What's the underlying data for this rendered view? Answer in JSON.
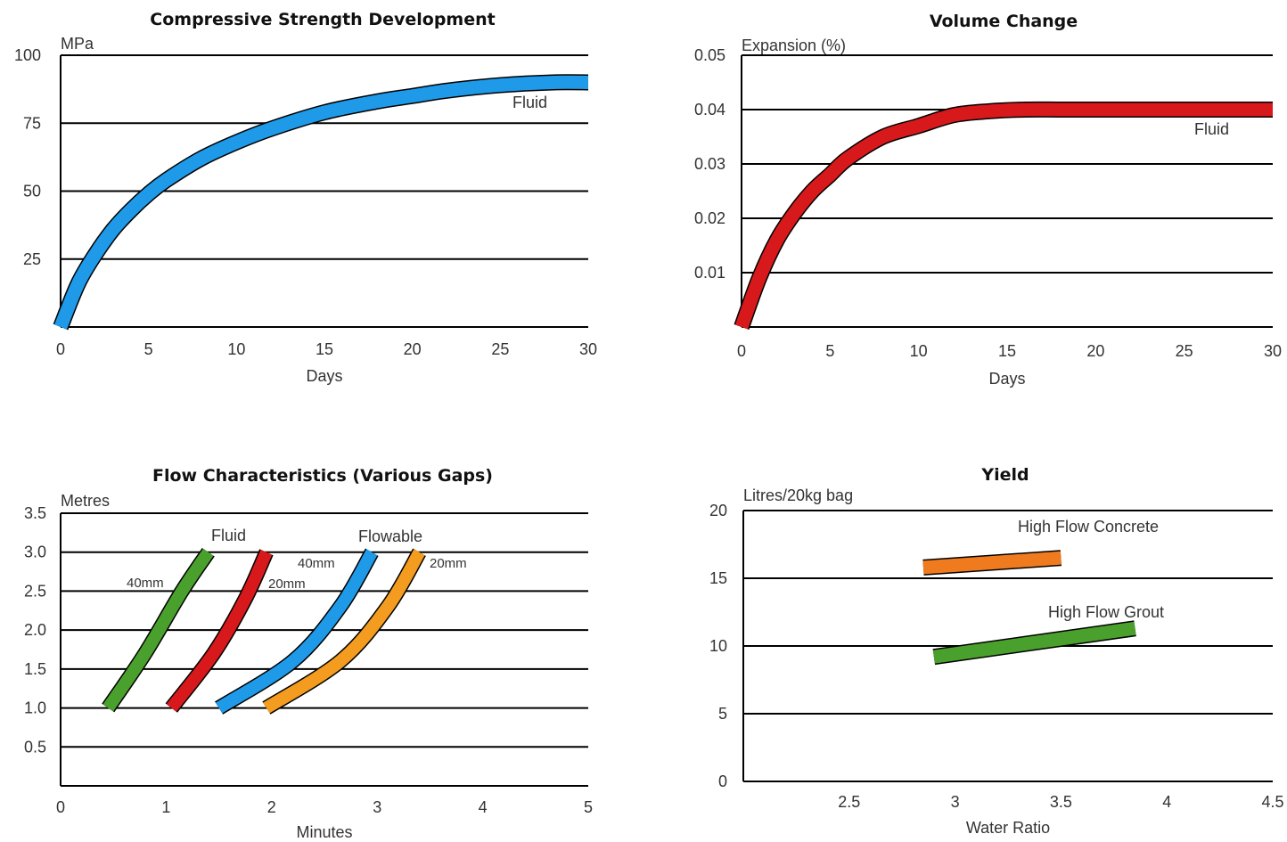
{
  "chart_data": [
    {
      "type": "line",
      "title": "Compressive Strength Development",
      "ylabel": "MPa",
      "xlabel": "Days",
      "xlim": [
        0,
        30
      ],
      "ylim": [
        0,
        100
      ],
      "xticks": [
        "0",
        "5",
        "10",
        "15",
        "20",
        "25",
        "30"
      ],
      "yticks": [
        "25",
        "50",
        "75",
        "100"
      ],
      "grid": true,
      "series": [
        {
          "name": "Fluid",
          "color": "#1f9ae8",
          "x": [
            0,
            1,
            2,
            3,
            4,
            5,
            6,
            8,
            10,
            12,
            15,
            18,
            20,
            22,
            25,
            28,
            30
          ],
          "y": [
            0,
            16,
            27,
            36,
            43,
            49,
            54,
            62,
            68,
            73,
            79,
            83,
            85,
            87,
            89,
            90,
            90
          ]
        }
      ]
    },
    {
      "type": "line",
      "title": "Volume Change",
      "ylabel": "Expansion (%)",
      "xlabel": "Days",
      "xlim": [
        0,
        30
      ],
      "ylim": [
        0,
        0.05
      ],
      "xticks": [
        "0",
        "5",
        "10",
        "15",
        "20",
        "25",
        "30"
      ],
      "yticks": [
        "0.01",
        "0.02",
        "0.03",
        "0.04",
        "0.05"
      ],
      "grid": true,
      "series": [
        {
          "name": "Fluid",
          "color": "#d7191c",
          "x": [
            0,
            1,
            2,
            3,
            4,
            5,
            6,
            8,
            10,
            12,
            14,
            16,
            18,
            20,
            25,
            30
          ],
          "y": [
            0,
            0.009,
            0.016,
            0.021,
            0.025,
            0.028,
            0.031,
            0.035,
            0.037,
            0.039,
            0.0397,
            0.04,
            0.04,
            0.04,
            0.04,
            0.04
          ]
        }
      ]
    },
    {
      "type": "line",
      "title": "Flow Characteristics (Various Gaps)",
      "ylabel": "Metres",
      "xlabel": "Minutes",
      "xlim": [
        0,
        5
      ],
      "ylim": [
        0,
        3.5
      ],
      "xticks": [
        "0",
        "1",
        "2",
        "3",
        "4",
        "5"
      ],
      "yticks": [
        "0.5",
        "1.0",
        "1.5",
        "2.0",
        "2.5",
        "3.0",
        "3.5"
      ],
      "grid": true,
      "group_labels": [
        "Fluid",
        "Flowable"
      ],
      "series": [
        {
          "name": "40mm",
          "group": "Fluid",
          "color": "#4aa02c",
          "x": [
            0.45,
            0.8,
            1.15,
            1.4
          ],
          "y": [
            1.0,
            1.7,
            2.5,
            3.0
          ]
        },
        {
          "name": "20mm",
          "group": "Fluid",
          "color": "#d7191c",
          "x": [
            1.05,
            1.45,
            1.75,
            1.95
          ],
          "y": [
            1.0,
            1.7,
            2.4,
            3.0
          ]
        },
        {
          "name": "40mm",
          "group": "Flowable",
          "color": "#1f9ae8",
          "x": [
            1.5,
            2.2,
            2.65,
            2.95
          ],
          "y": [
            1.0,
            1.6,
            2.3,
            3.0
          ]
        },
        {
          "name": "20mm",
          "group": "Flowable",
          "color": "#f39c1f",
          "x": [
            1.95,
            2.65,
            3.1,
            3.4
          ],
          "y": [
            1.0,
            1.6,
            2.3,
            3.0
          ]
        }
      ]
    },
    {
      "type": "line",
      "title": "Yield",
      "ylabel": "Litres/20kg bag",
      "xlabel": "Water Ratio",
      "xlim": [
        2.0,
        4.5
      ],
      "ylim": [
        0,
        20
      ],
      "xticks": [
        "2.5",
        "3",
        "3.5",
        "4",
        "4.5"
      ],
      "yticks": [
        "0",
        "5",
        "10",
        "15",
        "20"
      ],
      "grid": true,
      "series": [
        {
          "name": "High Flow Concrete",
          "color": "#f07b1f",
          "x": [
            2.85,
            3.5
          ],
          "y": [
            15.8,
            16.5
          ]
        },
        {
          "name": "High Flow Grout",
          "color": "#4aa02c",
          "x": [
            2.9,
            3.85
          ],
          "y": [
            9.2,
            11.3
          ]
        }
      ]
    }
  ]
}
